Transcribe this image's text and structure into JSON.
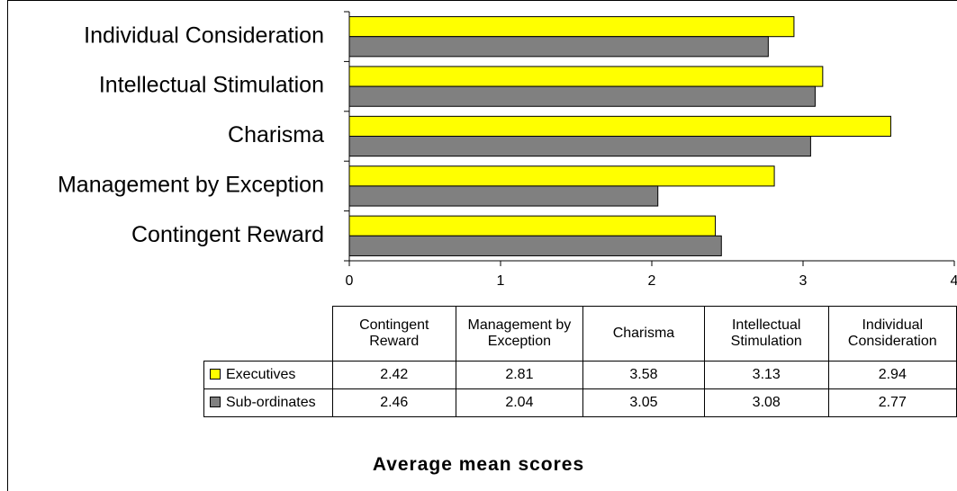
{
  "chart_data": {
    "type": "bar",
    "orientation": "horizontal",
    "title": "Average mean scores",
    "categories": [
      "Contingent Reward",
      "Management by Exception",
      "Charisma",
      "Intellectual Stimulation",
      "Individual Consideration"
    ],
    "series": [
      {
        "name": "Executives",
        "color": "#ffff00",
        "values": [
          2.42,
          2.81,
          3.58,
          3.13,
          2.94
        ]
      },
      {
        "name": "Sub-ordinates",
        "color": "#808080",
        "values": [
          2.46,
          2.04,
          3.05,
          3.08,
          2.77
        ]
      }
    ],
    "xlim": [
      0,
      4
    ],
    "xticks": [
      0,
      1,
      2,
      3,
      4
    ],
    "grid": false,
    "data_table": true
  }
}
